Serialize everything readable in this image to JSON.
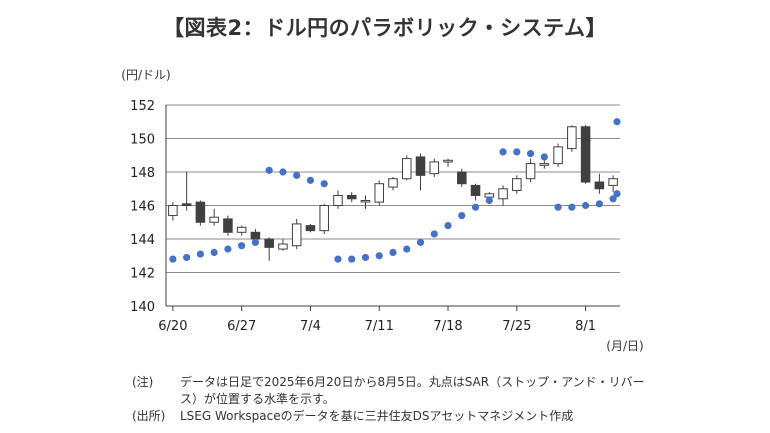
{
  "title": "【図表2：ドル円のパラボリック・システム】",
  "chart_data": {
    "type": "candlestick",
    "ylabel": "(円/ドル)",
    "xlabel": "(月/日)",
    "ylim": [
      140,
      152
    ],
    "yticks": [
      140,
      142,
      144,
      146,
      148,
      150,
      152
    ],
    "grid": true,
    "x_ticks": [
      "6/20",
      "6/27",
      "7/4",
      "7/11",
      "7/18",
      "7/25",
      "8/1"
    ],
    "dates": [
      "6/20",
      "6/23",
      "6/24",
      "6/25",
      "6/26",
      "6/27",
      "6/30",
      "7/1",
      "7/2",
      "7/3",
      "7/4",
      "7/7",
      "7/8",
      "7/9",
      "7/10",
      "7/11",
      "7/14",
      "7/15",
      "7/16",
      "7/17",
      "7/18",
      "7/21",
      "7/22",
      "7/23",
      "7/24",
      "7/25",
      "7/28",
      "7/29",
      "7/30",
      "7/31",
      "8/1",
      "8/4",
      "8/5"
    ],
    "candles": [
      {
        "open": 145.4,
        "high": 146.2,
        "low": 145.1,
        "close": 146.0
      },
      {
        "open": 146.1,
        "high": 148.0,
        "low": 145.7,
        "close": 146.0
      },
      {
        "open": 146.2,
        "high": 146.3,
        "low": 144.8,
        "close": 145.0
      },
      {
        "open": 145.0,
        "high": 145.8,
        "low": 144.8,
        "close": 145.3
      },
      {
        "open": 145.2,
        "high": 145.4,
        "low": 144.2,
        "close": 144.4
      },
      {
        "open": 144.4,
        "high": 144.8,
        "low": 144.2,
        "close": 144.7
      },
      {
        "open": 144.4,
        "high": 144.6,
        "low": 143.8,
        "close": 144.0
      },
      {
        "open": 144.0,
        "high": 144.1,
        "low": 142.7,
        "close": 143.5
      },
      {
        "open": 143.4,
        "high": 144.0,
        "low": 143.3,
        "close": 143.7
      },
      {
        "open": 143.6,
        "high": 145.2,
        "low": 143.4,
        "close": 144.9
      },
      {
        "open": 144.8,
        "high": 144.9,
        "low": 144.4,
        "close": 144.5
      },
      {
        "open": 144.5,
        "high": 146.1,
        "low": 144.3,
        "close": 146.0
      },
      {
        "open": 146.0,
        "high": 146.9,
        "low": 145.8,
        "close": 146.6
      },
      {
        "open": 146.6,
        "high": 146.8,
        "low": 146.2,
        "close": 146.4
      },
      {
        "open": 146.3,
        "high": 146.6,
        "low": 145.8,
        "close": 146.3
      },
      {
        "open": 146.2,
        "high": 147.5,
        "low": 146.0,
        "close": 147.3
      },
      {
        "open": 147.1,
        "high": 147.7,
        "low": 146.9,
        "close": 147.6
      },
      {
        "open": 147.6,
        "high": 149.0,
        "low": 147.5,
        "close": 148.8
      },
      {
        "open": 148.9,
        "high": 149.1,
        "low": 146.9,
        "close": 147.8
      },
      {
        "open": 147.9,
        "high": 148.8,
        "low": 147.7,
        "close": 148.6
      },
      {
        "open": 148.6,
        "high": 148.8,
        "low": 148.3,
        "close": 148.7
      },
      {
        "open": 148.0,
        "high": 148.2,
        "low": 147.1,
        "close": 147.3
      },
      {
        "open": 147.2,
        "high": 147.3,
        "low": 146.3,
        "close": 146.6
      },
      {
        "open": 146.5,
        "high": 146.8,
        "low": 146.3,
        "close": 146.7
      },
      {
        "open": 146.4,
        "high": 147.2,
        "low": 146.0,
        "close": 147.0
      },
      {
        "open": 146.9,
        "high": 147.8,
        "low": 146.7,
        "close": 147.6
      },
      {
        "open": 147.6,
        "high": 148.8,
        "low": 147.4,
        "close": 148.5
      },
      {
        "open": 148.4,
        "high": 148.9,
        "low": 148.2,
        "close": 148.5
      },
      {
        "open": 148.5,
        "high": 149.7,
        "low": 148.3,
        "close": 149.5
      },
      {
        "open": 149.4,
        "high": 150.8,
        "low": 149.2,
        "close": 150.7
      },
      {
        "open": 150.7,
        "high": 150.8,
        "low": 147.3,
        "close": 147.4
      },
      {
        "open": 147.4,
        "high": 147.9,
        "low": 146.7,
        "close": 147.0
      },
      {
        "open": 147.2,
        "high": 147.8,
        "low": 146.8,
        "close": 147.6
      }
    ],
    "sar": [
      142.8,
      142.9,
      143.1,
      143.2,
      143.4,
      143.6,
      143.8,
      148.1,
      148.0,
      147.8,
      147.5,
      147.3,
      142.8,
      142.8,
      142.9,
      143.0,
      143.2,
      143.4,
      143.8,
      144.3,
      144.8,
      145.4,
      145.9,
      146.3,
      149.2,
      149.2,
      149.1,
      148.9,
      145.9,
      145.9,
      146.0,
      146.1,
      146.4,
      146.7,
      151.0
    ],
    "sar_x": [
      0,
      1,
      2,
      3,
      4,
      5,
      6,
      7,
      8,
      9,
      10,
      11,
      12,
      13,
      14,
      15,
      16,
      17,
      18,
      19,
      20,
      21,
      22,
      23,
      24,
      25,
      26,
      27,
      28,
      29,
      30,
      31,
      32,
      32.6,
      33
    ],
    "colors": {
      "up_body": "#ffffff",
      "down_body": "#404040",
      "outline": "#404040",
      "sar": "#4472c4",
      "grid": "#8c8c8c",
      "axis": "#404040"
    }
  },
  "notes": [
    {
      "tag": "(注)",
      "text": "データは日足で2025年6月20日から8月5日。丸点はSAR（ストップ・アンド・リバース）が位置する水準を示す。"
    },
    {
      "tag": "(出所)",
      "text": "LSEG Workspaceのデータを基に三井住友DSアセットマネジメント作成"
    }
  ]
}
